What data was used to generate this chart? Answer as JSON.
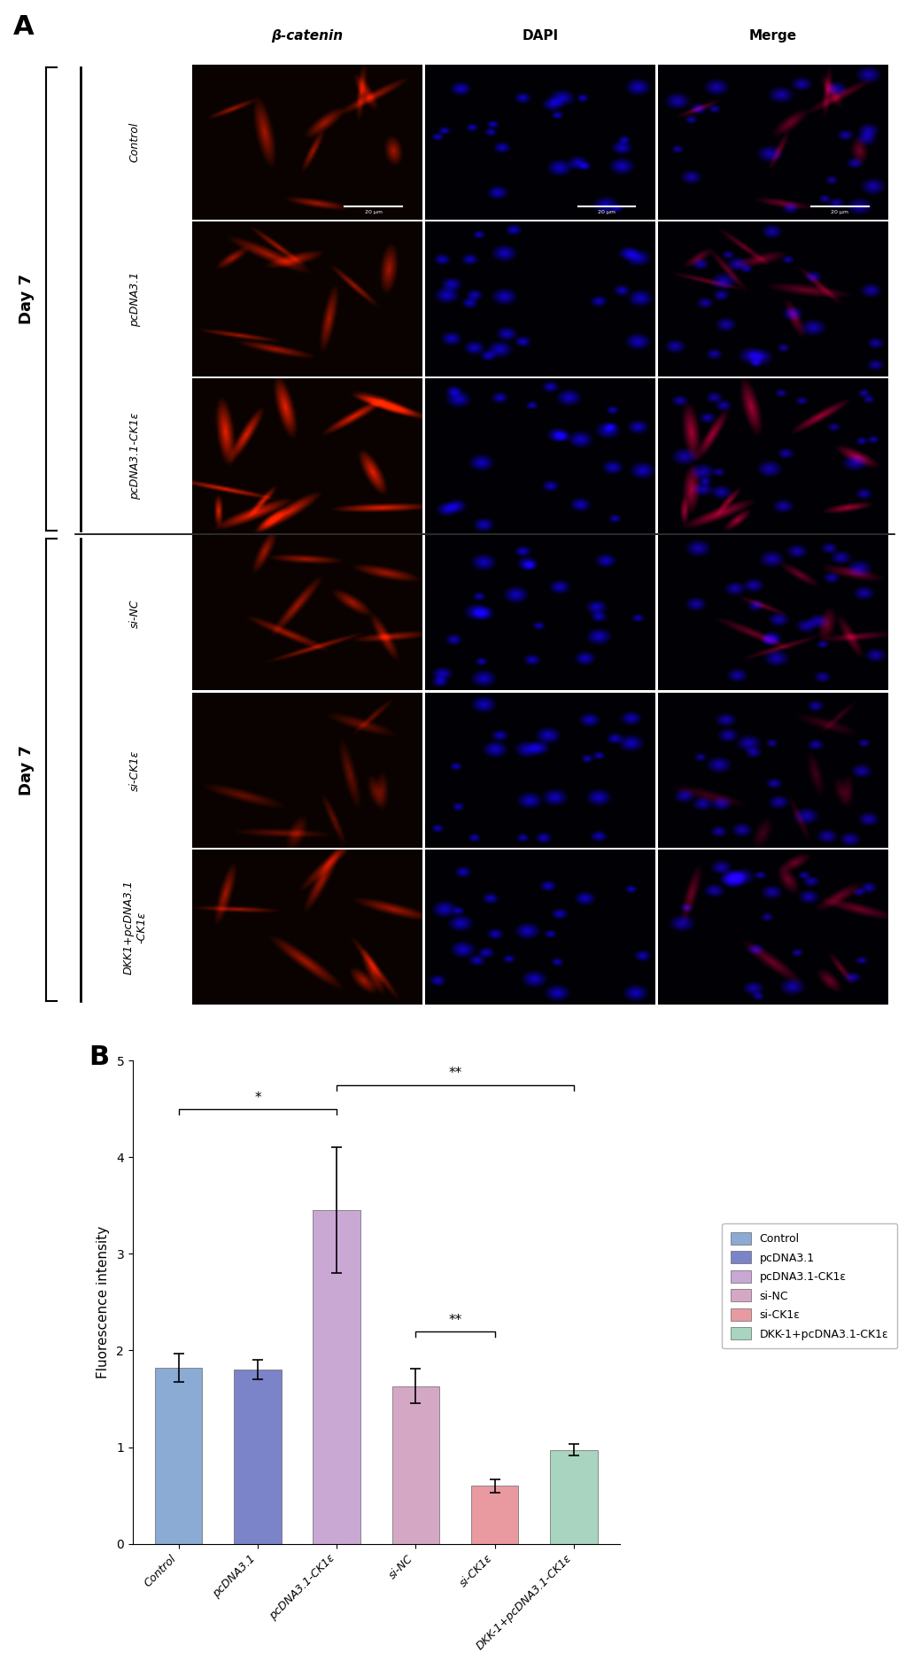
{
  "panel_A_label": "A",
  "panel_B_label": "B",
  "col_headers": [
    "β-catenin",
    "DAPI",
    "Merge"
  ],
  "row_labels": [
    "Control",
    "pcDNA3.1",
    "pcDNA3.1-CK1ε",
    "si-NC",
    "si-CK1ε",
    "DKK1+pcDNA3.1\n-CK1ε"
  ],
  "day7_label": "Day 7",
  "bar_categories": [
    "Control",
    "pcDNA3.1",
    "pcDNA3.1-CK1ε",
    "si-NC",
    "si-CK1ε",
    "DKK-1+pcDNA3.1-CK1ε"
  ],
  "bar_values": [
    1.82,
    1.8,
    3.45,
    1.63,
    0.6,
    0.97
  ],
  "bar_errors": [
    0.15,
    0.1,
    0.65,
    0.18,
    0.07,
    0.06
  ],
  "bar_colors": [
    "#8BAAD4",
    "#7B84C8",
    "#C9A8D4",
    "#D4A8C4",
    "#E89AA0",
    "#A8D4C0"
  ],
  "legend_labels": [
    "Control",
    "pcDNA3.1",
    "pcDNA3.1-CK1ε",
    "si-NC",
    "si-CK1ε",
    "DKK-1+pcDNA3.1-CK1ε"
  ],
  "legend_colors": [
    "#8BAAD4",
    "#7B84C8",
    "#C9A8D4",
    "#D4A8C4",
    "#E89AA0",
    "#A8D4C0"
  ],
  "ylabel": "Fluorescence intensity",
  "ylim": [
    0,
    5
  ],
  "yticks": [
    0,
    1,
    2,
    3,
    4,
    5
  ],
  "background_color": "#ffffff"
}
